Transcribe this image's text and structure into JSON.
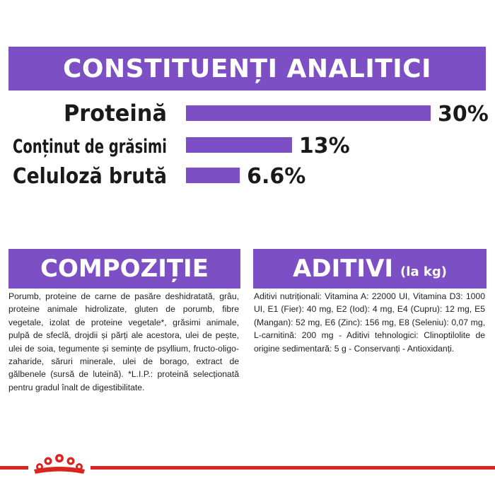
{
  "sections": {
    "analytic_title": "CONSTITUENȚI ANALITICI",
    "composition_title": "COMPOZIȚIE",
    "additives_title": "ADITIVI",
    "additives_unit": "(la kg)"
  },
  "chart_data": {
    "type": "bar",
    "orientation": "horizontal",
    "title": "CONSTITUENȚI ANALITICI",
    "categories": [
      "Proteină",
      "Conținut de grăsimi",
      "Celuloză brută"
    ],
    "values": [
      30,
      13,
      6.6
    ],
    "value_labels": [
      "30%",
      "13%",
      "6.6%"
    ],
    "xlim": [
      0,
      30
    ],
    "grid": false,
    "bar_color": "#7d4fc4"
  },
  "composition_text": "Porumb, proteine de carne de pasăre deshidratată, grâu, proteine animale hidrolizate, gluten de porumb, fibre vegetale, izolat de proteine vegetale*, grăsimi animale, pulpă de sfeclă, drojdii și părți ale acestora, ulei de pește, ulei de soia, tegumente și semințe de psyllium, fructo-oligo-zaharide, săruri minerale, ulei de borago, extract de gălbenele (sursă de luteină). *L.I.P.: proteină selecționată pentru gradul înalt de digestibilitate.",
  "additives_text": "Aditivi nutriționali: Vitamina A: 22000 UI, Vitamina D3: 1000 UI, E1 (Fier): 40 mg, E2 (Iod): 4 mg, E4 (Cupru): 12 mg, E5 (Mangan): 52 mg, E6 (Zinc): 156 mg, E8 (Seleniu): 0,07 mg, L-carnitină: 200 mg - Aditivi tehnologici: Clinoptilolite de origine sedimentară: 5 g - Conservanți - Antioxidanți.",
  "colors": {
    "accent": "#7d4fc4",
    "brand_red": "#d8261f"
  }
}
